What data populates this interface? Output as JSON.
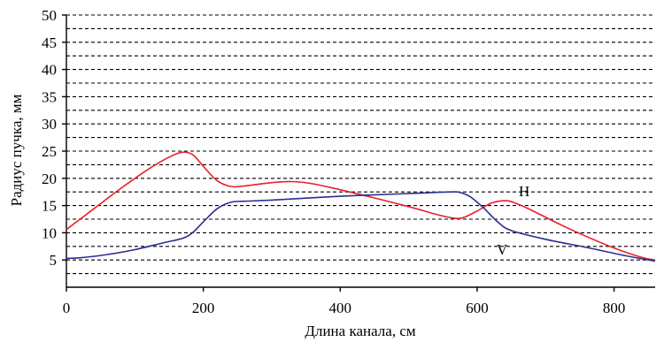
{
  "chart_data": {
    "type": "line",
    "title": "",
    "xlabel": "Длина канала, см",
    "ylabel": "Радиус пучка, мм",
    "xlim": [
      0,
      860
    ],
    "ylim": [
      0,
      50
    ],
    "xticks": [
      0,
      200,
      400,
      600,
      800
    ],
    "yticks": [
      5,
      10,
      15,
      20,
      25,
      30,
      35,
      40,
      45,
      50
    ],
    "grid": "horizontal dashed",
    "series": [
      {
        "name": "H",
        "color": "#e8202a",
        "x": [
          0,
          40,
          80,
          120,
          150,
          170,
          185,
          200,
          220,
          240,
          260,
          300,
          330,
          360,
          400,
          450,
          500,
          540,
          565,
          580,
          600,
          620,
          640,
          655,
          680,
          720,
          760,
          800,
          840,
          860
        ],
        "y": [
          10.6,
          14.4,
          18.2,
          21.7,
          23.9,
          24.8,
          24.3,
          22.2,
          19.6,
          18.5,
          18.6,
          19.2,
          19.4,
          19.0,
          17.9,
          16.4,
          14.8,
          13.4,
          12.7,
          12.8,
          14.0,
          15.4,
          15.9,
          15.5,
          14.1,
          11.6,
          9.3,
          7.2,
          5.5,
          5.0
        ]
      },
      {
        "name": "V",
        "color": "#2b2f8f",
        "x": [
          0,
          20,
          60,
          100,
          140,
          170,
          185,
          200,
          220,
          240,
          260,
          300,
          400,
          500,
          560,
          575,
          590,
          610,
          630,
          650,
          700,
          760,
          820,
          860
        ],
        "y": [
          5.3,
          5.4,
          6.0,
          6.9,
          8.1,
          9.0,
          10.1,
          12.0,
          14.4,
          15.6,
          15.8,
          16.0,
          16.7,
          17.2,
          17.5,
          17.4,
          16.6,
          14.5,
          12.0,
          10.4,
          8.8,
          7.3,
          5.7,
          4.8
        ]
      }
    ],
    "annotations": [
      "H",
      "V"
    ]
  }
}
